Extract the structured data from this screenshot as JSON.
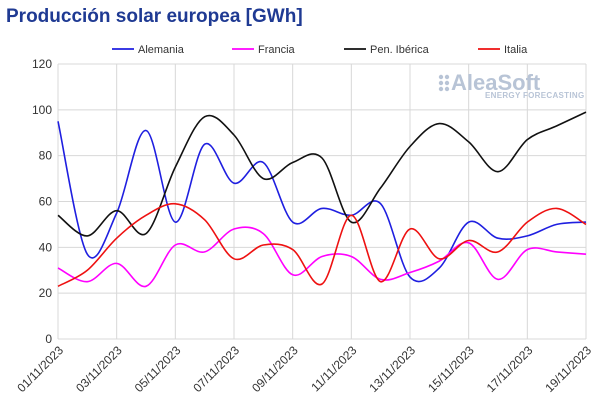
{
  "chart_data": {
    "type": "line",
    "title": "Producción solar europea [GWh]",
    "xlabel": "",
    "ylabel": "",
    "ylim": [
      0,
      120
    ],
    "yticks": [
      0,
      20,
      40,
      60,
      80,
      100,
      120
    ],
    "xrange": [
      "01/11/2023",
      "19/11/2023"
    ],
    "xticks": [
      "01/11/2023",
      "03/11/2023",
      "05/11/2023",
      "07/11/2023",
      "09/11/2023",
      "11/11/2023",
      "13/11/2023",
      "15/11/2023",
      "17/11/2023",
      "19/11/2023"
    ],
    "grid": true,
    "legend_position": "top",
    "x": [
      "01/11/2023",
      "02/11/2023",
      "03/11/2023",
      "04/11/2023",
      "05/11/2023",
      "06/11/2023",
      "07/11/2023",
      "08/11/2023",
      "09/11/2023",
      "10/11/2023",
      "11/11/2023",
      "12/11/2023",
      "13/11/2023",
      "14/11/2023",
      "15/11/2023",
      "16/11/2023",
      "17/11/2023",
      "18/11/2023",
      "19/11/2023"
    ],
    "series": [
      {
        "name": "Alemania",
        "color": "#1f1fe0",
        "values": [
          95,
          37,
          55,
          91,
          51,
          85,
          68,
          77,
          51,
          57,
          54,
          59,
          27,
          31,
          51,
          44,
          45,
          50,
          51
        ]
      },
      {
        "name": "Francia",
        "color": "#ff00ff",
        "values": [
          31,
          25,
          33,
          23,
          41,
          38,
          48,
          46,
          28,
          36,
          36,
          26,
          29,
          34,
          42,
          26,
          39,
          38,
          37
        ]
      },
      {
        "name": "Pen. Ibérica",
        "color": "#111111",
        "values": [
          54,
          45,
          56,
          46,
          75,
          97,
          89,
          70,
          77,
          79,
          51,
          66,
          84,
          94,
          86,
          73,
          87,
          93,
          99
        ]
      },
      {
        "name": "Italia",
        "color": "#ee1111",
        "values": [
          23,
          30,
          44,
          54,
          59,
          52,
          35,
          41,
          39,
          24,
          54,
          25,
          48,
          35,
          43,
          38,
          51,
          57,
          50
        ]
      }
    ]
  },
  "logo": {
    "main": "AleaSoft",
    "sub": "ENERGY FORECASTING"
  },
  "colors": {
    "title": "#1f3a93",
    "grid": "#d8d8d8",
    "logo": "#b8c4d6"
  }
}
